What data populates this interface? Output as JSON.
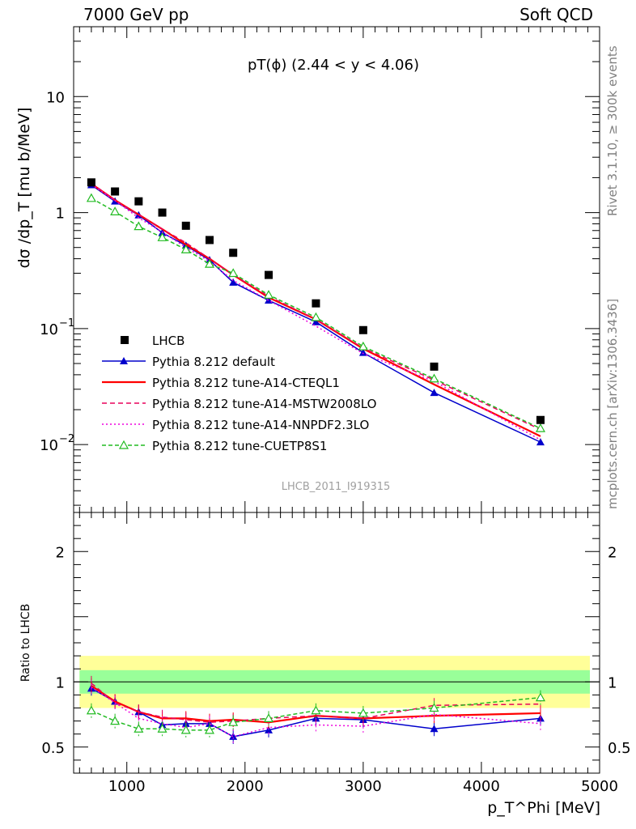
{
  "header": {
    "left": "7000 GeV pp",
    "right": "Soft QCD"
  },
  "side_labels": {
    "rivet": "Rivet 3.1.10, ≥ 300k events",
    "mcplots": "mcplots.cern.ch [arXiv:1306.3436]"
  },
  "chart_data": {
    "type": "scatter",
    "title": "pT(ϕ) (2.44 < y < 4.06)",
    "watermark": "LHCB_2011_I919315",
    "xlabel": "p_T^Phi [MeV]",
    "ylabel": "dσ /dp_T [mu b/MeV]",
    "ratio_ylabel": "Ratio to LHCB",
    "x_range": [
      550,
      5000
    ],
    "y_range": [
      0.0026,
      40
    ],
    "y_scale": "log",
    "ratio_range": [
      0.3,
      2.3
    ],
    "x_ticks": [
      "1000",
      "2000",
      "3000",
      "4000",
      "5000"
    ],
    "y_ticks": [
      {
        "value": 10,
        "label": "10",
        "exp": ""
      },
      {
        "value": 1,
        "label": "1",
        "exp": ""
      },
      {
        "value": 0.1,
        "label": "10",
        "exp": "−1"
      },
      {
        "value": 0.01,
        "label": "10",
        "exp": "−2"
      }
    ],
    "ratio_ticks": [
      {
        "value": 2,
        "label": "2"
      },
      {
        "value": 1,
        "label": "1"
      },
      {
        "value": 0.5,
        "label": "0.5"
      }
    ],
    "legend_position": "bottom-left",
    "x": [
      700,
      900,
      1100,
      1300,
      1500,
      1700,
      1900,
      2200,
      2600,
      3000,
      3600,
      4500
    ],
    "data": {
      "name": "LHCB",
      "color": "#000000",
      "values": [
        1.82,
        1.52,
        1.25,
        1.0,
        0.77,
        0.58,
        0.45,
        0.29,
        0.165,
        0.097,
        0.047,
        0.0163
      ],
      "ratio_band_inner": 0.09,
      "ratio_band_outer": 0.2
    },
    "series": [
      {
        "name": "Pythia 8.212 default",
        "color": "#0000cc",
        "dash": "",
        "marker": "triangle-filled",
        "values": [
          1.73,
          1.25,
          0.95,
          0.67,
          0.52,
          0.39,
          0.25,
          0.175,
          0.114,
          0.062,
          0.028,
          0.0105
        ],
        "ratio": [
          0.95,
          0.85,
          0.77,
          0.67,
          0.68,
          0.68,
          0.58,
          0.63,
          0.72,
          0.71,
          0.64,
          0.72
        ]
      },
      {
        "name": "Pythia 8.212 tune-A14-CTEQL1",
        "color": "#ff0000",
        "dash": "",
        "marker": "none",
        "values": [
          1.77,
          1.28,
          0.96,
          0.72,
          0.53,
          0.4,
          0.29,
          0.185,
          0.12,
          0.067,
          0.033,
          0.0118
        ],
        "ratio": [
          0.97,
          0.85,
          0.77,
          0.72,
          0.72,
          0.7,
          0.71,
          0.69,
          0.74,
          0.72,
          0.74,
          0.76
        ]
      },
      {
        "name": "Pythia 8.212 tune-A14-MSTW2008LO",
        "color": "#e8005a",
        "dash": "6,4",
        "marker": "none",
        "values": [
          1.8,
          1.27,
          0.96,
          0.72,
          0.55,
          0.4,
          0.29,
          0.19,
          0.12,
          0.068,
          0.036,
          0.0135
        ],
        "ratio": [
          0.99,
          0.84,
          0.77,
          0.73,
          0.71,
          0.69,
          0.7,
          0.72,
          0.74,
          0.72,
          0.82,
          0.83
        ]
      },
      {
        "name": "Pythia 8.212 tune-A14-NNPDF2.3LO",
        "color": "#ee00dd",
        "dash": "2,3",
        "marker": "none",
        "values": [
          1.75,
          1.27,
          0.9,
          0.68,
          0.5,
          0.38,
          0.26,
          0.175,
          0.105,
          0.061,
          0.035,
          0.011
        ],
        "ratio": [
          0.96,
          0.84,
          0.72,
          0.68,
          0.65,
          0.68,
          0.58,
          0.65,
          0.67,
          0.66,
          0.75,
          0.68
        ]
      },
      {
        "name": "Pythia 8.212 tune-CUETP8S1",
        "color": "#22bb22",
        "dash": "5,3",
        "marker": "triangle-open",
        "values": [
          1.33,
          1.02,
          0.76,
          0.61,
          0.48,
          0.36,
          0.3,
          0.195,
          0.125,
          0.07,
          0.037,
          0.0138
        ],
        "ratio": [
          0.78,
          0.7,
          0.64,
          0.64,
          0.63,
          0.63,
          0.69,
          0.72,
          0.78,
          0.76,
          0.8,
          0.88
        ]
      }
    ]
  }
}
